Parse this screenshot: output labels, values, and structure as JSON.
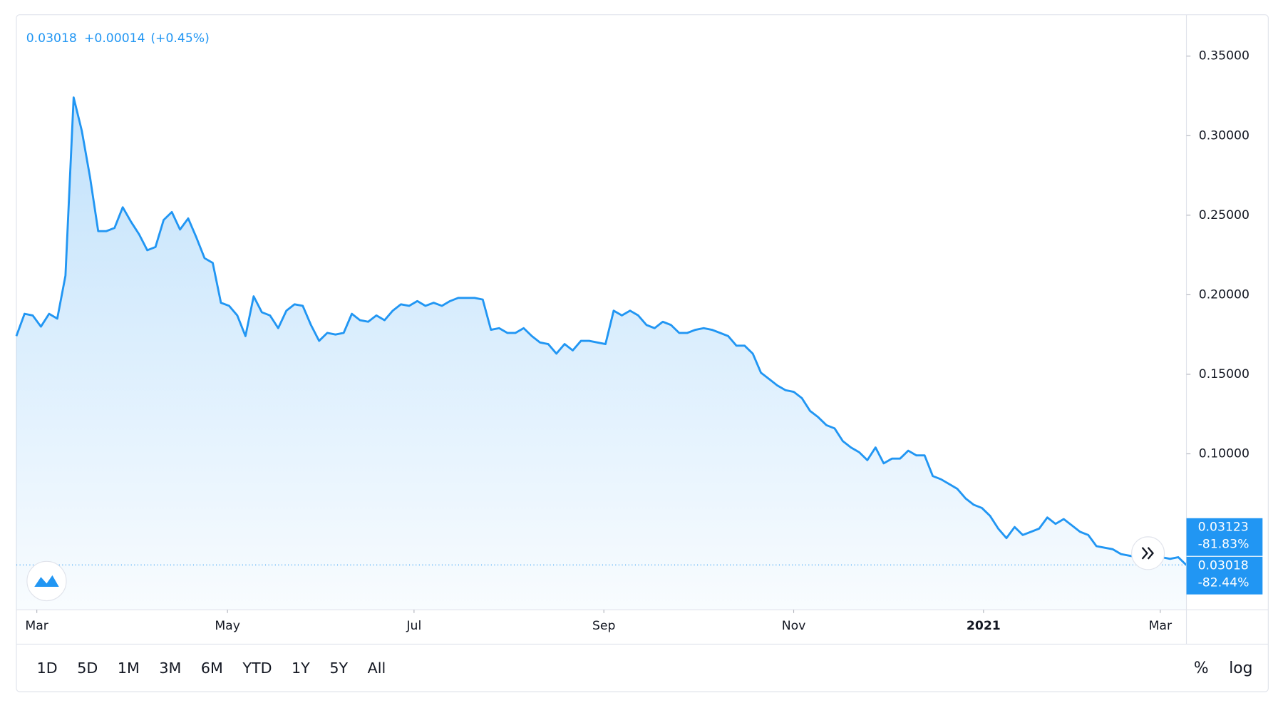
{
  "chart_data": {
    "type": "area",
    "header": {
      "last": "0.03018",
      "change": "+0.00014",
      "change_pct": "(+0.45%)"
    },
    "color": "#2196f3",
    "values": [
      0.174,
      0.188,
      0.187,
      0.18,
      0.188,
      0.185,
      0.212,
      0.324,
      0.303,
      0.274,
      0.24,
      0.24,
      0.242,
      0.255,
      0.246,
      0.238,
      0.228,
      0.23,
      0.247,
      0.252,
      0.241,
      0.248,
      0.236,
      0.223,
      0.22,
      0.195,
      0.193,
      0.187,
      0.174,
      0.199,
      0.189,
      0.187,
      0.179,
      0.19,
      0.194,
      0.193,
      0.181,
      0.171,
      0.176,
      0.175,
      0.176,
      0.188,
      0.184,
      0.183,
      0.187,
      0.184,
      0.19,
      0.194,
      0.193,
      0.196,
      0.193,
      0.195,
      0.193,
      0.196,
      0.198,
      0.198,
      0.198,
      0.197,
      0.178,
      0.179,
      0.176,
      0.176,
      0.179,
      0.174,
      0.17,
      0.169,
      0.163,
      0.169,
      0.165,
      0.171,
      0.171,
      0.17,
      0.169,
      0.19,
      0.187,
      0.19,
      0.187,
      0.181,
      0.179,
      0.183,
      0.181,
      0.176,
      0.176,
      0.178,
      0.179,
      0.178,
      0.176,
      0.174,
      0.168,
      0.168,
      0.163,
      0.151,
      0.147,
      0.143,
      0.14,
      0.139,
      0.135,
      0.127,
      0.123,
      0.118,
      0.116,
      0.108,
      0.104,
      0.101,
      0.096,
      0.104,
      0.094,
      0.097,
      0.097,
      0.102,
      0.099,
      0.099,
      0.086,
      0.084,
      0.081,
      0.078,
      0.072,
      0.068,
      0.066,
      0.061,
      0.053,
      0.047,
      0.054,
      0.049,
      0.051,
      0.053,
      0.06,
      0.056,
      0.059,
      0.055,
      0.051,
      0.049,
      0.042,
      0.041,
      0.04,
      0.037,
      0.036,
      0.035,
      0.036,
      0.036,
      0.035,
      0.034,
      0.035,
      0.03
    ],
    "xlim": [
      0,
      143
    ],
    "xticks": [
      {
        "value": 2.5,
        "label": "Mar"
      },
      {
        "value": 25.8,
        "label": "May"
      },
      {
        "value": 48.6,
        "label": "Jul"
      },
      {
        "value": 71.8,
        "label": "Sep"
      },
      {
        "value": 95,
        "label": "Nov"
      },
      {
        "value": 118.2,
        "label": "2021"
      },
      {
        "value": 139.8,
        "label": "Mar"
      }
    ],
    "ylim": [
      0.002,
      0.376
    ],
    "yticks": [
      {
        "value": 0.1,
        "label": "0.10000"
      },
      {
        "value": 0.15,
        "label": "0.15000"
      },
      {
        "value": 0.2,
        "label": "0.20000"
      },
      {
        "value": 0.25,
        "label": "0.25000"
      },
      {
        "value": 0.3,
        "label": "0.30000"
      },
      {
        "value": 0.35,
        "label": "0.35000"
      }
    ],
    "price_markers": [
      {
        "value": 0.03123,
        "label": "0.03123",
        "change": "-81.83%"
      },
      {
        "value": 0.03018,
        "label": "0.03018",
        "change": "-82.44%"
      }
    ],
    "ranges": [
      "1D",
      "5D",
      "1M",
      "3M",
      "6M",
      "YTD",
      "1Y",
      "5Y",
      "All"
    ],
    "toggles": [
      "%",
      "log"
    ]
  }
}
